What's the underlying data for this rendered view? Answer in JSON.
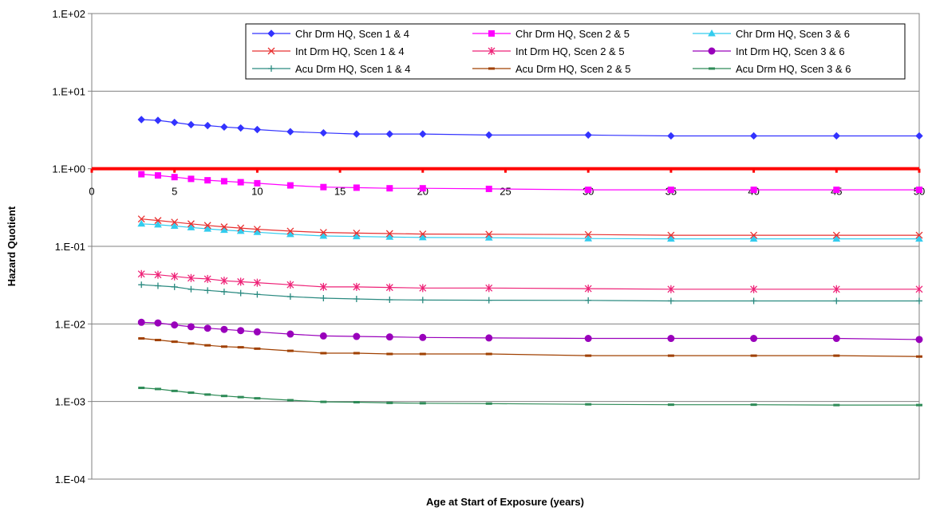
{
  "chart_data": {
    "type": "line",
    "title": "",
    "xlabel": "Age at Start of Exposure (years)",
    "ylabel": "Hazard Quotient",
    "yscale": "log",
    "ylim": [
      0.0001,
      100
    ],
    "xlim": [
      0,
      50
    ],
    "y_ticks": [
      "1.E-04",
      "1.E-03",
      "1.E-02",
      "1.E-01",
      "1.E+00",
      "1.E+01",
      "1.E+02"
    ],
    "x_ticks": [
      "0",
      "5",
      "10",
      "15",
      "20",
      "25",
      "30",
      "35",
      "40",
      "45",
      "50"
    ],
    "x_axis_position": "at y = 1",
    "grid": "horizontal major",
    "legend_position": "top-right",
    "x": [
      3,
      4,
      5,
      6,
      7,
      8,
      9,
      10,
      12,
      14,
      16,
      18,
      20,
      24,
      30,
      35,
      40,
      45,
      50
    ],
    "threshold": {
      "value": 1,
      "color": "#ff0000"
    },
    "series": [
      {
        "name": "Chr Drm HQ, Scen 1 & 4",
        "color": "#3333ff",
        "marker": "diamond",
        "values": [
          4.3,
          4.2,
          3.95,
          3.7,
          3.6,
          3.45,
          3.35,
          3.2,
          3.0,
          2.9,
          2.8,
          2.8,
          2.8,
          2.72,
          2.72,
          2.65,
          2.65,
          2.65,
          2.65
        ]
      },
      {
        "name": "Chr Drm HQ, Scen 2 & 5",
        "color": "#ff00ff",
        "marker": "square",
        "values": [
          0.85,
          0.82,
          0.78,
          0.74,
          0.71,
          0.69,
          0.67,
          0.65,
          0.61,
          0.58,
          0.57,
          0.56,
          0.56,
          0.55,
          0.535,
          0.535,
          0.535,
          0.535,
          0.535
        ]
      },
      {
        "name": "Chr Drm HQ, Scen 3 & 6",
        "color": "#33ccee",
        "marker": "triangle",
        "values": [
          0.195,
          0.19,
          0.183,
          0.175,
          0.168,
          0.162,
          0.157,
          0.152,
          0.143,
          0.136,
          0.134,
          0.132,
          0.13,
          0.129,
          0.126,
          0.125,
          0.125,
          0.125,
          0.125
        ]
      },
      {
        "name": "Int Drm HQ, Scen 1 & 4",
        "color": "#e83030",
        "marker": "x",
        "values": [
          0.225,
          0.215,
          0.205,
          0.195,
          0.186,
          0.178,
          0.172,
          0.166,
          0.157,
          0.151,
          0.148,
          0.146,
          0.144,
          0.143,
          0.142,
          0.139,
          0.139,
          0.139,
          0.139
        ]
      },
      {
        "name": "Int Drm HQ, Scen 2 & 5",
        "color": "#ee2277",
        "marker": "star",
        "values": [
          0.044,
          0.043,
          0.041,
          0.039,
          0.038,
          0.036,
          0.035,
          0.034,
          0.032,
          0.03,
          0.03,
          0.0295,
          0.029,
          0.029,
          0.0285,
          0.028,
          0.028,
          0.028,
          0.028
        ]
      },
      {
        "name": "Int Drm HQ, Scen 3 & 6",
        "color": "#9900bb",
        "marker": "circle",
        "values": [
          0.0105,
          0.0103,
          0.0097,
          0.0092,
          0.0088,
          0.0085,
          0.0082,
          0.0079,
          0.0074,
          0.007,
          0.0069,
          0.0068,
          0.0067,
          0.0066,
          0.0065,
          0.0065,
          0.0065,
          0.0065,
          0.0063
        ]
      },
      {
        "name": "Acu Drm HQ, Scen 1 & 4",
        "color": "#2a8a80",
        "marker": "plus",
        "values": [
          0.032,
          0.031,
          0.03,
          0.028,
          0.027,
          0.026,
          0.025,
          0.024,
          0.0225,
          0.0215,
          0.021,
          0.0205,
          0.0203,
          0.0202,
          0.0201,
          0.0198,
          0.0198,
          0.0198,
          0.0198
        ]
      },
      {
        "name": "Acu Drm HQ, Scen 2 & 5",
        "color": "#a04000",
        "marker": "dash",
        "values": [
          0.0065,
          0.0062,
          0.0059,
          0.0056,
          0.0053,
          0.0051,
          0.005,
          0.0048,
          0.0045,
          0.0042,
          0.0042,
          0.0041,
          0.0041,
          0.0041,
          0.0039,
          0.0039,
          0.0039,
          0.0039,
          0.0038
        ]
      },
      {
        "name": "Acu Drm HQ, Scen 3 & 6",
        "color": "#2e8b57",
        "marker": "dash",
        "values": [
          0.0015,
          0.00145,
          0.00137,
          0.0013,
          0.00123,
          0.00118,
          0.00114,
          0.0011,
          0.00104,
          0.00099,
          0.00098,
          0.00096,
          0.00095,
          0.00094,
          0.00092,
          0.00091,
          0.00091,
          0.0009,
          0.0009
        ]
      }
    ]
  }
}
